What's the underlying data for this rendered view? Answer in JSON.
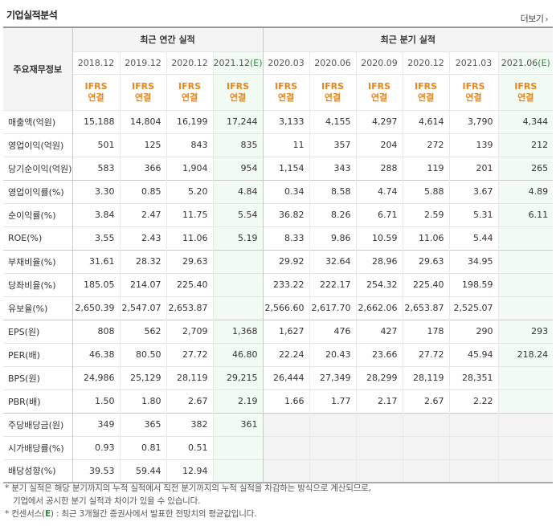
{
  "header": {
    "title": "기업실적분석",
    "more_label": "더보기",
    "more_arrow": "›"
  },
  "table": {
    "group_label": "주요재무정보",
    "annual_label": "최근 연간 실적",
    "quarter_label": "최근 분기 실적",
    "periods": [
      {
        "date": "2018.12",
        "std": "IFRS",
        "basis": "연결",
        "estimate": false
      },
      {
        "date": "2019.12",
        "std": "IFRS",
        "basis": "연결",
        "estimate": false
      },
      {
        "date": "2020.12",
        "std": "IFRS",
        "basis": "연결",
        "estimate": false
      },
      {
        "date": "2021.12",
        "est_mark": "(E)",
        "std": "IFRS",
        "basis": "연결",
        "estimate": true
      },
      {
        "date": "2020.03",
        "std": "IFRS",
        "basis": "연결",
        "estimate": false
      },
      {
        "date": "2020.06",
        "std": "IFRS",
        "basis": "연결",
        "estimate": false
      },
      {
        "date": "2020.09",
        "std": "IFRS",
        "basis": "연결",
        "estimate": false
      },
      {
        "date": "2020.12",
        "std": "IFRS",
        "basis": "연결",
        "estimate": false
      },
      {
        "date": "2021.03",
        "std": "IFRS",
        "basis": "연결",
        "estimate": false
      },
      {
        "date": "2021.06",
        "est_mark": "(E)",
        "std": "IFRS",
        "basis": "연결",
        "estimate": true
      }
    ],
    "rows": [
      {
        "label": "매출액(억원)",
        "values": [
          "15,188",
          "14,804",
          "16,199",
          "17,244",
          "3,133",
          "4,155",
          "4,297",
          "4,614",
          "3,790",
          "4,344"
        ],
        "group_end": false
      },
      {
        "label": "영업이익(억원)",
        "values": [
          "501",
          "125",
          "843",
          "835",
          "11",
          "357",
          "204",
          "272",
          "139",
          "212"
        ],
        "group_end": false
      },
      {
        "label": "당기순이익(억원)",
        "values": [
          "583",
          "366",
          "1,904",
          "954",
          "1,154",
          "343",
          "288",
          "119",
          "201",
          "265"
        ],
        "group_end": true
      },
      {
        "label": "영업이익률(%)",
        "values": [
          "3.30",
          "0.85",
          "5.20",
          "4.84",
          "0.34",
          "8.58",
          "4.74",
          "5.88",
          "3.67",
          "4.89"
        ],
        "group_end": false
      },
      {
        "label": "순이익률(%)",
        "values": [
          "3.84",
          "2.47",
          "11.75",
          "5.54",
          "36.82",
          "8.26",
          "6.71",
          "2.59",
          "5.31",
          "6.11"
        ],
        "group_end": false
      },
      {
        "label": "ROE(%)",
        "values": [
          "3.55",
          "2.43",
          "11.06",
          "5.19",
          "8.33",
          "9.86",
          "10.59",
          "11.06",
          "5.44",
          ""
        ],
        "group_end": true
      },
      {
        "label": "부채비율(%)",
        "values": [
          "31.61",
          "28.32",
          "29.63",
          "",
          "29.92",
          "32.64",
          "28.96",
          "29.63",
          "34.95",
          ""
        ],
        "group_end": false
      },
      {
        "label": "당좌비율(%)",
        "values": [
          "185.05",
          "214.07",
          "225.40",
          "",
          "233.22",
          "222.17",
          "254.32",
          "225.40",
          "198.59",
          ""
        ],
        "group_end": false
      },
      {
        "label": "유보율(%)",
        "values": [
          "2,650.39",
          "2,547.07",
          "2,653.87",
          "",
          "2,566.60",
          "2,617.70",
          "2,662.06",
          "2,653.87",
          "2,525.07",
          ""
        ],
        "group_end": true
      },
      {
        "label": "EPS(원)",
        "values": [
          "808",
          "562",
          "2,709",
          "1,368",
          "1,627",
          "476",
          "427",
          "178",
          "290",
          "293"
        ],
        "group_end": false
      },
      {
        "label": "PER(배)",
        "values": [
          "46.38",
          "80.50",
          "27.72",
          "46.80",
          "22.24",
          "20.43",
          "23.66",
          "27.72",
          "45.94",
          "218.24"
        ],
        "group_end": false
      },
      {
        "label": "BPS(원)",
        "values": [
          "24,986",
          "25,129",
          "28,119",
          "29,215",
          "26,444",
          "27,349",
          "28,299",
          "28,119",
          "28,351",
          ""
        ],
        "group_end": false
      },
      {
        "label": "PBR(배)",
        "values": [
          "1.50",
          "1.80",
          "2.67",
          "2.19",
          "1.66",
          "1.77",
          "2.17",
          "2.67",
          "2.22",
          ""
        ],
        "group_end": true
      },
      {
        "label": "주당배당금(원)",
        "values": [
          "349",
          "365",
          "382",
          "361",
          "",
          "",
          "",
          "",
          "",
          ""
        ],
        "group_end": false,
        "gray_quarters": true
      },
      {
        "label": "시가배당률(%)",
        "values": [
          "0.93",
          "0.81",
          "0.51",
          "",
          "",
          "",
          "",
          "",
          "",
          ""
        ],
        "group_end": false,
        "gray_quarters": true
      },
      {
        "label": "배당성향(%)",
        "values": [
          "39.53",
          "59.44",
          "12.94",
          "",
          "",
          "",
          "",
          "",
          "",
          ""
        ],
        "group_end": true,
        "gray_quarters": true,
        "last": true
      }
    ]
  },
  "notes": {
    "line1": "* 분기 실적은 해당 분기까지의 누적 실적에서 직전 분기까지의 누적 실적을 차감하는 방식으로 계산되므로,",
    "line2": "기업에서 공시한 분기 실적과 차이가 있을 수 있습니다.",
    "line3_prefix": "* 컨센서스(",
    "line3_mark": "E",
    "line3_suffix": ") : 최근 3개월간 증권사에서 발표한 전망치의 평균값입니다."
  }
}
